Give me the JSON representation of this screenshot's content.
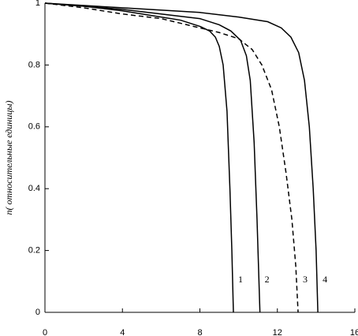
{
  "chart_data": {
    "type": "line",
    "y_label": "n( относительные единицы)",
    "xlim": [
      0,
      16
    ],
    "xticks": [
      0,
      4,
      8,
      12,
      16
    ],
    "ylim": [
      0,
      1
    ],
    "yticks": [
      0,
      0.2,
      0.4,
      0.6,
      0.8,
      1
    ],
    "series": [
      {
        "name": "1",
        "color": "#000000",
        "dash": false,
        "x": [
          0,
          2,
          4,
          6,
          7,
          8,
          8.5,
          8.8,
          9.0,
          9.2,
          9.4,
          9.55,
          9.65,
          9.73
        ],
        "values": [
          1,
          0.99,
          0.975,
          0.955,
          0.945,
          0.925,
          0.91,
          0.89,
          0.86,
          0.8,
          0.65,
          0.4,
          0.2,
          0
        ]
      },
      {
        "name": "2",
        "color": "#000000",
        "dash": false,
        "x": [
          0,
          4,
          8,
          9,
          9.6,
          10.1,
          10.4,
          10.6,
          10.8,
          10.95,
          11.1
        ],
        "values": [
          1,
          0.98,
          0.95,
          0.93,
          0.91,
          0.88,
          0.83,
          0.75,
          0.55,
          0.3,
          0
        ]
      },
      {
        "name": "3",
        "color": "#000000",
        "dash": true,
        "x": [
          0,
          2,
          4,
          6,
          8,
          9,
          10,
          10.7,
          11.2,
          11.7,
          12.1,
          12.45,
          12.75,
          12.95,
          13.07
        ],
        "values": [
          1,
          0.985,
          0.965,
          0.95,
          0.92,
          0.905,
          0.885,
          0.85,
          0.8,
          0.72,
          0.6,
          0.45,
          0.3,
          0.15,
          0
        ]
      },
      {
        "name": "4",
        "color": "#000000",
        "dash": false,
        "x": [
          0,
          4,
          8,
          10,
          11.5,
          12.2,
          12.7,
          13.1,
          13.4,
          13.65,
          13.85,
          14.0,
          14.09
        ],
        "values": [
          1,
          0.985,
          0.97,
          0.955,
          0.94,
          0.92,
          0.89,
          0.84,
          0.75,
          0.6,
          0.4,
          0.2,
          0
        ]
      }
    ]
  }
}
